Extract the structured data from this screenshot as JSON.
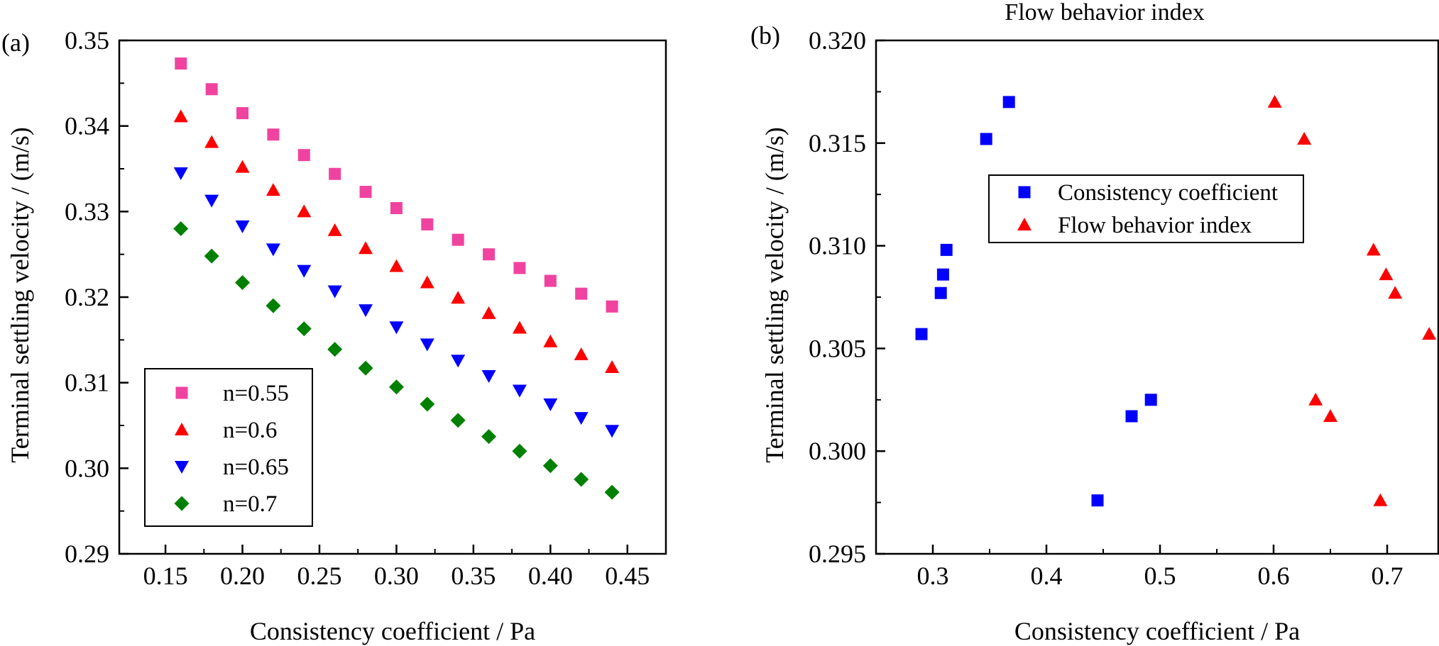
{
  "chart_data": [
    {
      "panel": "(a)",
      "type": "scatter",
      "title": "",
      "xlabel": "Consistency coefficient / Pa",
      "ylabel": "Terminal settling velocity / (m/s)",
      "xlim": [
        0.12,
        0.475
      ],
      "ylim": [
        0.29,
        0.35
      ],
      "xticks": [
        "0.15",
        "0.20",
        "0.25",
        "0.30",
        "0.35",
        "0.40",
        "0.45"
      ],
      "yticks": [
        "0.29",
        "0.30",
        "0.31",
        "0.32",
        "0.33",
        "0.34",
        "0.35"
      ],
      "legend_position": "bottom-left",
      "x": [
        0.16,
        0.18,
        0.2,
        0.22,
        0.24,
        0.26,
        0.28,
        0.3,
        0.32,
        0.34,
        0.36,
        0.38,
        0.4,
        0.42,
        0.44
      ],
      "series": [
        {
          "name": "n=0.55",
          "marker": "square",
          "color": "#f0439f",
          "values": [
            0.3473,
            0.3443,
            0.3415,
            0.339,
            0.3366,
            0.3344,
            0.3323,
            0.3304,
            0.3285,
            0.3267,
            0.325,
            0.3234,
            0.3219,
            0.3204,
            0.3189
          ]
        },
        {
          "name": "n=0.6",
          "marker": "triangle-up",
          "color": "#ff0000",
          "values": [
            0.3411,
            0.3381,
            0.3352,
            0.3325,
            0.33,
            0.3278,
            0.3257,
            0.3236,
            0.3217,
            0.3199,
            0.3181,
            0.3164,
            0.3148,
            0.3133,
            0.3118
          ]
        },
        {
          "name": "n=0.65",
          "marker": "triangle-down",
          "color": "#0000ff",
          "values": [
            0.3345,
            0.3313,
            0.3283,
            0.3256,
            0.3231,
            0.3207,
            0.3185,
            0.3165,
            0.3145,
            0.3126,
            0.3108,
            0.3091,
            0.3075,
            0.3059,
            0.3044
          ]
        },
        {
          "name": "n=0.7",
          "marker": "diamond",
          "color": "#008000",
          "values": [
            0.328,
            0.3248,
            0.3217,
            0.319,
            0.3163,
            0.3139,
            0.3117,
            0.3095,
            0.3075,
            0.3056,
            0.3037,
            0.302,
            0.3003,
            0.2987,
            0.2972
          ]
        }
      ]
    },
    {
      "panel": "(b)",
      "type": "scatter",
      "title": "Flow behavior index",
      "xlabel": "Consistency coefficient / Pa",
      "ylabel": "Terminal settling velocity / (m/s)",
      "xlim": [
        0.25,
        0.745
      ],
      "ylim": [
        0.295,
        0.32
      ],
      "xticks": [
        "0.3",
        "0.4",
        "0.5",
        "0.6",
        "0.7"
      ],
      "yticks": [
        "0.295",
        "0.300",
        "0.305",
        "0.310",
        "0.315",
        "0.320"
      ],
      "legend_position": "upper-center",
      "series": [
        {
          "name": "Consistency coefficient",
          "marker": "square",
          "color": "#0000ff",
          "x": [
            0.29,
            0.307,
            0.309,
            0.312,
            0.347,
            0.367,
            0.445,
            0.475,
            0.492
          ],
          "y": [
            0.3057,
            0.3077,
            0.3086,
            0.3098,
            0.3152,
            0.317,
            0.2976,
            0.3017,
            0.3025
          ]
        },
        {
          "name": "Flow behavior index",
          "marker": "triangle-up",
          "color": "#ff0000",
          "x": [
            0.601,
            0.627,
            0.637,
            0.65,
            0.688,
            0.699,
            0.707,
            0.737,
            0.694
          ],
          "y": [
            0.317,
            0.3152,
            0.3025,
            0.3017,
            0.3098,
            0.3086,
            0.3077,
            0.3057,
            0.2976
          ]
        }
      ]
    }
  ]
}
